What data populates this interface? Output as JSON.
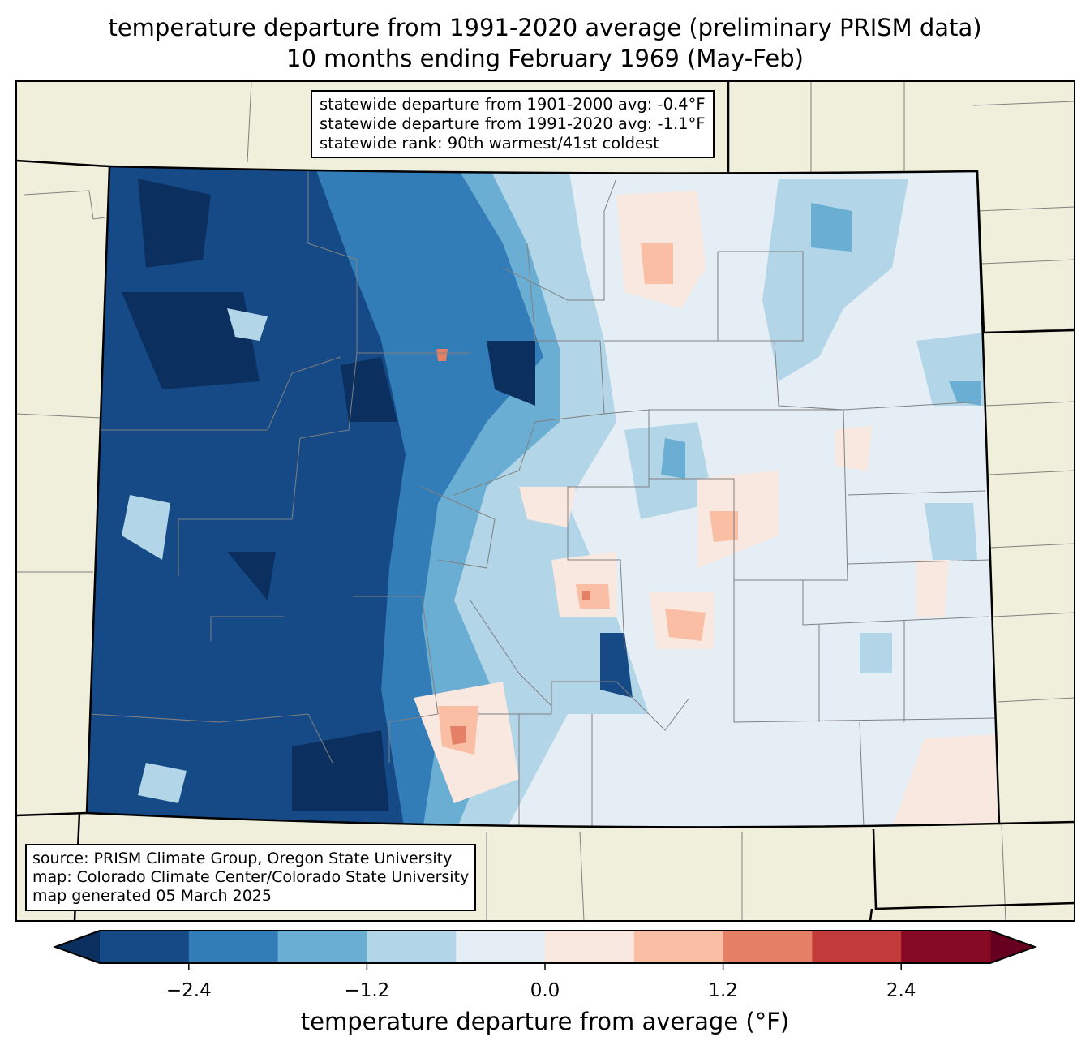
{
  "title": {
    "line1": "temperature departure from 1991-2020 average (preliminary PRISM data)",
    "line2": "10 months ending February 1969 (May-Feb)"
  },
  "stats": {
    "line1": "statewide departure from 1901-2000 avg: -0.4°F",
    "line2": "statewide departure from 1991-2020 avg: -1.1°F",
    "line3": "statewide rank: 90th warmest/41st coldest"
  },
  "source": {
    "line1": "source: PRISM Climate Group, Oregon State University",
    "line2": "map: Colorado Climate Center/Colorado State University",
    "line3": "map generated 05 March 2025"
  },
  "colorbar": {
    "label": "temperature departure from average (°F)",
    "levels": [
      -3.0,
      -2.4,
      -1.8,
      -1.2,
      -0.6,
      0.0,
      0.6,
      1.2,
      1.8,
      2.4,
      3.0
    ],
    "colors": [
      "#154a87",
      "#327cb8",
      "#6baed3",
      "#b2d5e7",
      "#e5eef5",
      "#f9e8df",
      "#f9bea4",
      "#e48066",
      "#c33a3b",
      "#870a25"
    ],
    "extend_low_color": "#0b3060",
    "extend_high_color": "#67001f",
    "ticks": [
      {
        "value": -2.4,
        "label": "−2.4"
      },
      {
        "value": -1.2,
        "label": "−1.2"
      },
      {
        "value": 0.0,
        "label": "0.0"
      },
      {
        "value": 1.2,
        "label": "1.2"
      },
      {
        "value": 2.4,
        "label": "2.4"
      }
    ]
  },
  "map": {
    "land_color": "#efefdb",
    "border_color": "#000000",
    "county_color": "#808080"
  }
}
